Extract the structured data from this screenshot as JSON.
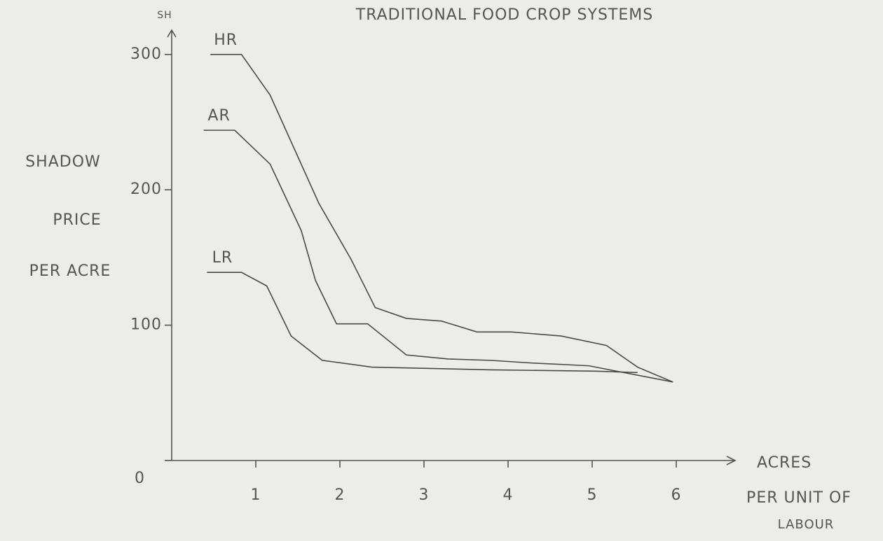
{
  "chart_data": {
    "type": "line",
    "title": "TRADITIONAL FOOD CROP SYSTEMS",
    "y_unit": "SH",
    "y_label": [
      "SHADOW",
      "PRICE",
      "PER ACRE"
    ],
    "x_label": [
      "ACRES",
      "PER UNIT OF",
      "LABOUR"
    ],
    "xlim": [
      0,
      6.7
    ],
    "ylim": [
      0,
      318
    ],
    "xticks": [
      1,
      2,
      3,
      4,
      5,
      6
    ],
    "yticks": [
      0,
      100,
      200,
      300
    ],
    "grid": false,
    "series": [
      {
        "name": "HR",
        "color": "#4a4a4a",
        "x": [
          0.46,
          0.83,
          1.17,
          1.75,
          2.13,
          2.42,
          2.79,
          3.21,
          3.63,
          4.04,
          4.63,
          5.17,
          5.54,
          5.96
        ],
        "values": [
          300,
          300,
          270,
          190,
          149,
          113,
          105,
          103,
          95,
          95,
          92,
          85,
          69,
          58
        ]
      },
      {
        "name": "AR",
        "color": "#4a4a4a",
        "x": [
          0.38,
          0.75,
          1.17,
          1.54,
          1.71,
          1.96,
          2.33,
          2.79,
          3.29,
          3.79,
          4.29,
          4.96,
          5.96
        ],
        "values": [
          244,
          244,
          219,
          170,
          133,
          101,
          101,
          78,
          75,
          74,
          72,
          70,
          58
        ]
      },
      {
        "name": "LR",
        "color": "#4a4a4a",
        "x": [
          0.42,
          0.83,
          1.13,
          1.42,
          1.79,
          2.38,
          3.79,
          5.04,
          5.54
        ],
        "values": [
          139,
          139,
          129,
          92,
          74,
          69,
          67,
          66,
          65
        ]
      }
    ]
  }
}
